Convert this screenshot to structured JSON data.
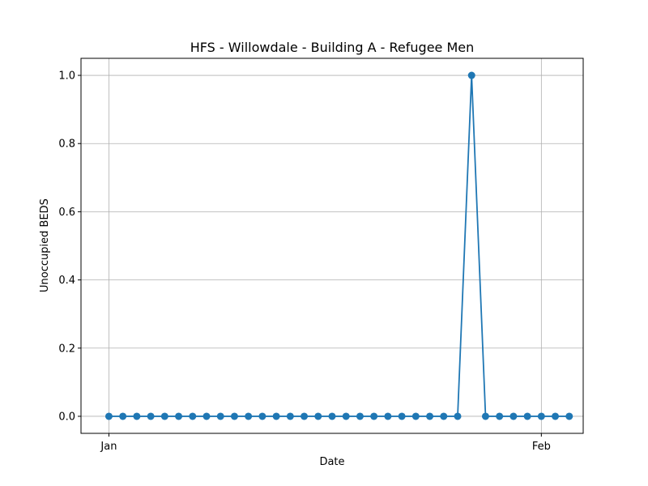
{
  "chart_data": {
    "type": "line",
    "title": "HFS - Willowdale - Building A - Refugee Men",
    "xlabel": "Date",
    "ylabel": "Unoccupied BEDS",
    "x_start": "2021-01-01",
    "x_end": "2021-02-03",
    "xlim": [
      "2020-12-30",
      "2021-02-04"
    ],
    "ylim": [
      -0.05,
      1.05
    ],
    "x_ticks": [
      {
        "date": "2021-01-01",
        "label": "Jan"
      },
      {
        "date": "2021-02-01",
        "label": "Feb"
      }
    ],
    "y_ticks": [
      {
        "value": 0.0,
        "label": "0.0"
      },
      {
        "value": 0.2,
        "label": "0.2"
      },
      {
        "value": 0.4,
        "label": "0.4"
      },
      {
        "value": 0.6,
        "label": "0.6"
      },
      {
        "value": 0.8,
        "label": "0.8"
      },
      {
        "value": 1.0,
        "label": "1.0"
      }
    ],
    "grid": true,
    "series": [
      {
        "color": "#1f77b4",
        "values": [
          0,
          0,
          0,
          0,
          0,
          0,
          0,
          0,
          0,
          0,
          0,
          0,
          0,
          0,
          0,
          0,
          0,
          0,
          0,
          0,
          0,
          0,
          0,
          0,
          0,
          0,
          1,
          0,
          0,
          0,
          0,
          0,
          0,
          0
        ]
      }
    ]
  }
}
